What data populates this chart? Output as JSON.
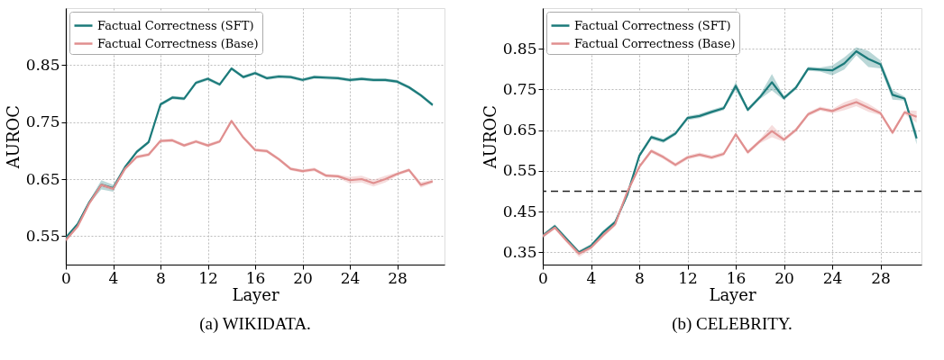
{
  "chart_data": [
    {
      "type": "line",
      "title": "(a) WIKIDATA.",
      "xlabel": "Layer",
      "ylabel": "AUROC",
      "x": [
        0,
        1,
        2,
        3,
        4,
        5,
        6,
        7,
        8,
        9,
        10,
        11,
        12,
        13,
        14,
        15,
        16,
        17,
        18,
        19,
        20,
        21,
        22,
        23,
        24,
        25,
        26,
        27,
        28,
        29,
        30,
        31
      ],
      "xlim": [
        0,
        32
      ],
      "xticks": [
        0,
        4,
        8,
        12,
        16,
        20,
        24,
        28
      ],
      "ylim": [
        0.5,
        0.95
      ],
      "yticks": [
        0.55,
        0.65,
        0.75,
        0.85
      ],
      "grid": true,
      "legend": "top left",
      "line_style": "solid",
      "series": [
        {
          "name": "Factual Correctness (SFT)",
          "color": "#1b7a7a",
          "values": [
            0.547,
            0.571,
            0.61,
            0.64,
            0.634,
            0.671,
            0.698,
            0.715,
            0.781,
            0.793,
            0.791,
            0.819,
            0.826,
            0.816,
            0.844,
            0.829,
            0.836,
            0.827,
            0.83,
            0.829,
            0.824,
            0.829,
            0.828,
            0.827,
            0.824,
            0.826,
            0.824,
            0.824,
            0.821,
            0.811,
            0.797,
            0.78
          ],
          "lower": [
            0.544,
            0.568,
            0.607,
            0.632,
            0.628,
            0.668,
            0.695,
            0.712,
            0.778,
            0.79,
            0.788,
            0.816,
            0.823,
            0.813,
            0.841,
            0.826,
            0.833,
            0.824,
            0.827,
            0.826,
            0.821,
            0.826,
            0.825,
            0.824,
            0.821,
            0.823,
            0.821,
            0.821,
            0.818,
            0.808,
            0.794,
            0.777
          ],
          "upper": [
            0.55,
            0.574,
            0.613,
            0.648,
            0.64,
            0.674,
            0.701,
            0.718,
            0.784,
            0.796,
            0.794,
            0.822,
            0.829,
            0.819,
            0.847,
            0.832,
            0.839,
            0.83,
            0.833,
            0.832,
            0.827,
            0.832,
            0.831,
            0.83,
            0.827,
            0.829,
            0.827,
            0.827,
            0.824,
            0.814,
            0.8,
            0.783
          ]
        },
        {
          "name": "Factual Correctness (Base)",
          "color": "#e08f8f",
          "values": [
            0.543,
            0.567,
            0.608,
            0.64,
            0.633,
            0.668,
            0.689,
            0.693,
            0.717,
            0.718,
            0.709,
            0.716,
            0.709,
            0.716,
            0.752,
            0.723,
            0.701,
            0.699,
            0.685,
            0.668,
            0.664,
            0.667,
            0.656,
            0.655,
            0.648,
            0.65,
            0.643,
            0.65,
            0.659,
            0.666,
            0.64,
            0.646
          ],
          "lower": [
            0.54,
            0.564,
            0.605,
            0.637,
            0.63,
            0.665,
            0.686,
            0.69,
            0.714,
            0.715,
            0.706,
            0.713,
            0.706,
            0.713,
            0.749,
            0.72,
            0.698,
            0.696,
            0.682,
            0.665,
            0.661,
            0.664,
            0.653,
            0.652,
            0.642,
            0.644,
            0.637,
            0.644,
            0.656,
            0.663,
            0.635,
            0.643
          ],
          "upper": [
            0.546,
            0.57,
            0.611,
            0.643,
            0.636,
            0.671,
            0.692,
            0.696,
            0.72,
            0.721,
            0.712,
            0.719,
            0.712,
            0.719,
            0.755,
            0.726,
            0.704,
            0.702,
            0.688,
            0.671,
            0.667,
            0.67,
            0.659,
            0.658,
            0.654,
            0.656,
            0.649,
            0.656,
            0.662,
            0.669,
            0.645,
            0.649
          ]
        }
      ]
    },
    {
      "type": "line",
      "title": "(b) CELEBRITY.",
      "xlabel": "Layer",
      "ylabel": "AUROC",
      "x": [
        0,
        1,
        2,
        3,
        4,
        5,
        6,
        7,
        8,
        9,
        10,
        11,
        12,
        13,
        14,
        15,
        16,
        17,
        18,
        19,
        20,
        21,
        22,
        23,
        24,
        25,
        26,
        27,
        28,
        29,
        30,
        31
      ],
      "xlim": [
        0,
        31.4
      ],
      "xticks": [
        0,
        4,
        8,
        12,
        16,
        20,
        24,
        28
      ],
      "ylim": [
        0.32,
        0.95
      ],
      "yticks": [
        0.35,
        0.45,
        0.55,
        0.65,
        0.75,
        0.85
      ],
      "grid": true,
      "legend": "top left",
      "line_style": "solid",
      "ref_lines": [
        {
          "axis": "y",
          "value": 0.5,
          "color": "#222222",
          "line_style": "dashed"
        }
      ],
      "series": [
        {
          "name": "Factual Correctness (SFT)",
          "color": "#1b7a7a",
          "values": [
            0.391,
            0.414,
            0.382,
            0.35,
            0.366,
            0.399,
            0.424,
            0.491,
            0.587,
            0.633,
            0.624,
            0.642,
            0.68,
            0.685,
            0.695,
            0.704,
            0.759,
            0.7,
            0.731,
            0.768,
            0.729,
            0.755,
            0.801,
            0.799,
            0.797,
            0.814,
            0.844,
            0.825,
            0.812,
            0.737,
            0.728,
            0.63
          ],
          "lower": [
            0.386,
            0.409,
            0.377,
            0.345,
            0.361,
            0.394,
            0.419,
            0.486,
            0.582,
            0.628,
            0.619,
            0.637,
            0.675,
            0.68,
            0.69,
            0.699,
            0.749,
            0.695,
            0.726,
            0.748,
            0.724,
            0.75,
            0.796,
            0.794,
            0.785,
            0.799,
            0.834,
            0.805,
            0.802,
            0.725,
            0.723,
            0.615
          ],
          "upper": [
            0.396,
            0.419,
            0.387,
            0.355,
            0.371,
            0.404,
            0.429,
            0.496,
            0.592,
            0.638,
            0.629,
            0.647,
            0.685,
            0.69,
            0.7,
            0.709,
            0.769,
            0.705,
            0.736,
            0.788,
            0.734,
            0.76,
            0.806,
            0.804,
            0.809,
            0.829,
            0.854,
            0.845,
            0.822,
            0.749,
            0.733,
            0.645
          ]
        },
        {
          "name": "Factual Correctness (Base)",
          "color": "#e08f8f",
          "values": [
            0.39,
            0.411,
            0.378,
            0.347,
            0.362,
            0.392,
            0.419,
            0.498,
            0.56,
            0.599,
            0.584,
            0.565,
            0.583,
            0.59,
            0.583,
            0.592,
            0.64,
            0.596,
            0.623,
            0.648,
            0.627,
            0.651,
            0.689,
            0.703,
            0.697,
            0.709,
            0.719,
            0.705,
            0.692,
            0.644,
            0.694,
            0.683
          ],
          "lower": [
            0.385,
            0.406,
            0.373,
            0.339,
            0.357,
            0.387,
            0.414,
            0.493,
            0.555,
            0.594,
            0.579,
            0.56,
            0.578,
            0.585,
            0.578,
            0.587,
            0.635,
            0.591,
            0.618,
            0.633,
            0.622,
            0.646,
            0.684,
            0.698,
            0.692,
            0.699,
            0.709,
            0.695,
            0.687,
            0.639,
            0.689,
            0.668
          ],
          "upper": [
            0.395,
            0.416,
            0.383,
            0.355,
            0.367,
            0.397,
            0.424,
            0.503,
            0.565,
            0.604,
            0.589,
            0.57,
            0.588,
            0.595,
            0.588,
            0.597,
            0.645,
            0.601,
            0.628,
            0.663,
            0.632,
            0.656,
            0.694,
            0.708,
            0.702,
            0.719,
            0.729,
            0.715,
            0.697,
            0.649,
            0.699,
            0.698
          ]
        }
      ]
    }
  ]
}
